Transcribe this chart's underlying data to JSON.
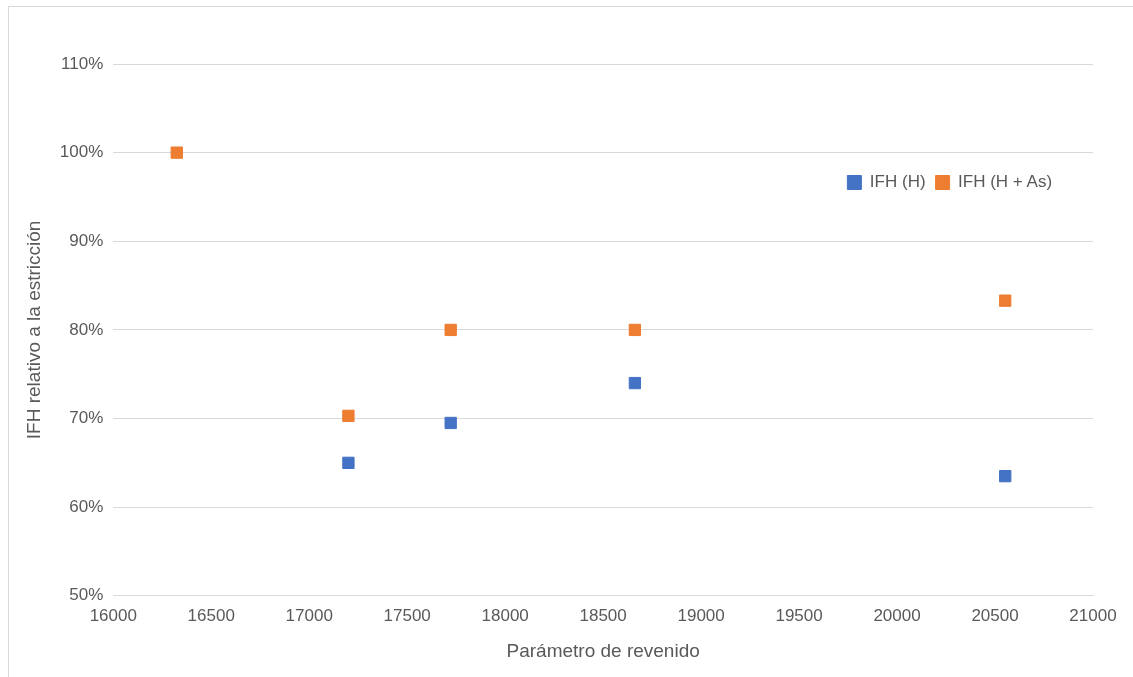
{
  "chart_data": {
    "type": "scatter",
    "xlabel": "Parámetro de revenido",
    "ylabel": "IFH relativo a la estricción",
    "series": [
      {
        "name": "IFH (H)",
        "color": "#4472c4",
        "x": [
          17200,
          17722,
          18662,
          20552
        ],
        "values": [
          65,
          69.5,
          74,
          63.5
        ]
      },
      {
        "name": "IFH (H + As)",
        "color": "#ed7d31",
        "x": [
          16324,
          17200,
          17722,
          18662,
          20552
        ],
        "values": [
          100,
          70.3,
          80,
          80,
          83.3
        ]
      }
    ],
    "xlim": [
      16000,
      21000
    ],
    "xticks": [
      16000,
      16500,
      17000,
      17500,
      18000,
      18500,
      19000,
      19500,
      20000,
      20500,
      21000
    ],
    "ylim": [
      50,
      110
    ],
    "yticks": [
      {
        "value": 50,
        "label": "50%"
      },
      {
        "value": 60,
        "label": "60%"
      },
      {
        "value": 70,
        "label": "70%"
      },
      {
        "value": 80,
        "label": "80%"
      },
      {
        "value": 90,
        "label": "90%"
      },
      {
        "value": 100,
        "label": "100%"
      },
      {
        "value": 110,
        "label": "110%"
      }
    ],
    "grid": "y",
    "legend": "top right",
    "marker": "square"
  }
}
